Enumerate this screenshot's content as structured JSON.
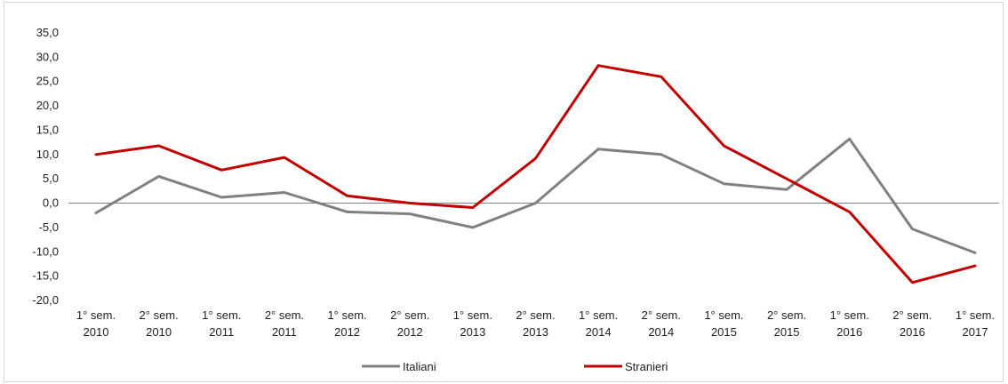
{
  "chart_data": {
    "type": "line",
    "categories": [
      [
        "1° sem.",
        "2010"
      ],
      [
        "2° sem.",
        "2010"
      ],
      [
        "1° sem.",
        "2011"
      ],
      [
        "2° sem.",
        "2011"
      ],
      [
        "1° sem.",
        "2012"
      ],
      [
        "2° sem.",
        "2012"
      ],
      [
        "1° sem.",
        "2013"
      ],
      [
        "2° sem.",
        "2013"
      ],
      [
        "1° sem.",
        "2014"
      ],
      [
        "2° sem.",
        "2014"
      ],
      [
        "1° sem.",
        "2015"
      ],
      [
        "2° sem.",
        "2015"
      ],
      [
        "1° sem.",
        "2016"
      ],
      [
        "2° sem.",
        "2016"
      ],
      [
        "1° sem.",
        "2017"
      ]
    ],
    "series": [
      {
        "name": "Italiani",
        "color": "#808080",
        "values": [
          -2.0,
          5.5,
          1.2,
          2.2,
          -1.8,
          -2.2,
          -5.0,
          0.0,
          11.1,
          10.0,
          4.0,
          2.8,
          13.2,
          -5.3,
          -10.2
        ]
      },
      {
        "name": "Stranieri",
        "color": "#c00000",
        "values": [
          10.0,
          11.8,
          6.8,
          9.4,
          1.5,
          0.0,
          -0.9,
          9.2,
          28.3,
          26.0,
          11.8,
          5.0,
          -1.8,
          -16.3,
          -12.9
        ]
      }
    ],
    "ylim": [
      -20,
      35
    ],
    "yticks": [
      "35,0",
      "30,0",
      "25,0",
      "20,0",
      "15,0",
      "10,0",
      "5,0",
      "0,0",
      "-5,0",
      "-10,0",
      "-15,0",
      "-20,0"
    ],
    "ytick_values": [
      35,
      30,
      25,
      20,
      15,
      10,
      5,
      0,
      -5,
      -10,
      -15,
      -20
    ],
    "title": "",
    "xlabel": "",
    "ylabel": "",
    "grid": false,
    "legend_position": "bottom"
  }
}
